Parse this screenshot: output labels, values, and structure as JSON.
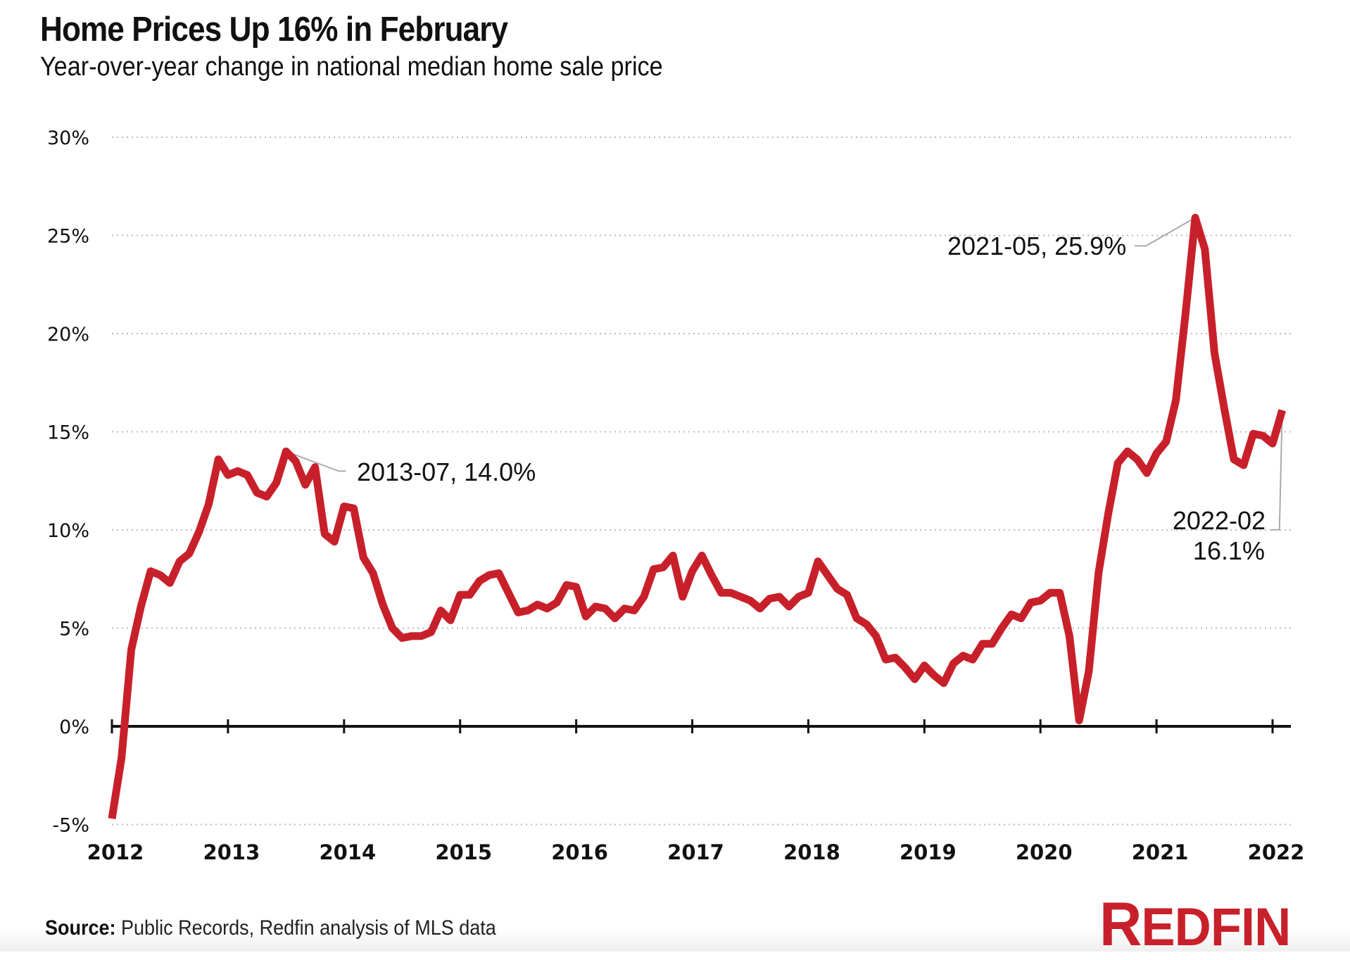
{
  "header": {
    "title": "Home Prices Up 16% in February",
    "subtitle": "Year-over-year change in national median home sale price"
  },
  "footer": {
    "source_label": "Source:",
    "source_text": " Public Records, Redfin analysis of MLS data",
    "logo_first": "R",
    "logo_rest": "EDFIN"
  },
  "colors": {
    "line": "#c8202a",
    "grid": "#bbbbbb",
    "axis": "#111111",
    "leader": "#aaaaaa",
    "brand": "#c8202a"
  },
  "chart_data": {
    "type": "line",
    "title": "Home Prices Up 16% in February",
    "subtitle": "Year-over-year change in national median home sale price",
    "xlabel": "",
    "ylabel": "",
    "x_start": "2012-01",
    "x_end": "2022-02",
    "x_ticks": [
      "2012",
      "2013",
      "2014",
      "2015",
      "2016",
      "2017",
      "2018",
      "2019",
      "2020",
      "2021",
      "2022"
    ],
    "y_ticks": [
      "30%",
      "25%",
      "20%",
      "15%",
      "10%",
      "5%",
      "0%",
      "-5%"
    ],
    "y_tick_values": [
      30,
      25,
      20,
      15,
      10,
      5,
      0,
      -5
    ],
    "ylim": [
      -5,
      30
    ],
    "grid": true,
    "legend": "none",
    "series": [
      {
        "name": "YoY change in national median home sale price (%)",
        "values": [
          -4.7,
          -1.6,
          3.9,
          6.1,
          7.9,
          7.7,
          7.3,
          8.4,
          8.8,
          9.9,
          11.3,
          13.6,
          12.8,
          13.0,
          12.8,
          11.9,
          11.7,
          12.4,
          14.0,
          13.5,
          12.3,
          13.2,
          9.8,
          9.4,
          11.2,
          11.1,
          8.6,
          7.8,
          6.2,
          5.0,
          4.5,
          4.6,
          4.6,
          4.8,
          5.9,
          5.4,
          6.7,
          6.7,
          7.4,
          7.7,
          7.8,
          6.8,
          5.8,
          5.9,
          6.2,
          6.0,
          6.3,
          7.2,
          7.1,
          5.6,
          6.1,
          6.0,
          5.5,
          6.0,
          5.9,
          6.6,
          8.0,
          8.1,
          8.7,
          6.6,
          7.9,
          8.7,
          7.7,
          6.8,
          6.8,
          6.6,
          6.4,
          6.0,
          6.5,
          6.6,
          6.1,
          6.6,
          6.8,
          8.4,
          7.7,
          7.0,
          6.7,
          5.5,
          5.2,
          4.6,
          3.4,
          3.5,
          3.0,
          2.4,
          3.1,
          2.6,
          2.2,
          3.2,
          3.6,
          3.4,
          4.2,
          4.2,
          5.0,
          5.7,
          5.5,
          6.3,
          6.4,
          6.8,
          6.8,
          4.6,
          0.3,
          2.8,
          7.8,
          10.8,
          13.4,
          14.0,
          13.6,
          12.9,
          13.9,
          14.5,
          16.6,
          21.0,
          25.9,
          24.3,
          19.0,
          16.2,
          13.6,
          13.3,
          14.9,
          14.8,
          14.4,
          16.1
        ]
      }
    ],
    "annotations": [
      {
        "label": "2013-07, 14.0%",
        "date": "2013-07",
        "value": 14.0
      },
      {
        "label": "2021-05, 25.9%",
        "date": "2021-05",
        "value": 25.9
      },
      {
        "label_line1": "2022-02",
        "label_line2": "16.1%",
        "date": "2022-02",
        "value": 16.1
      }
    ]
  }
}
